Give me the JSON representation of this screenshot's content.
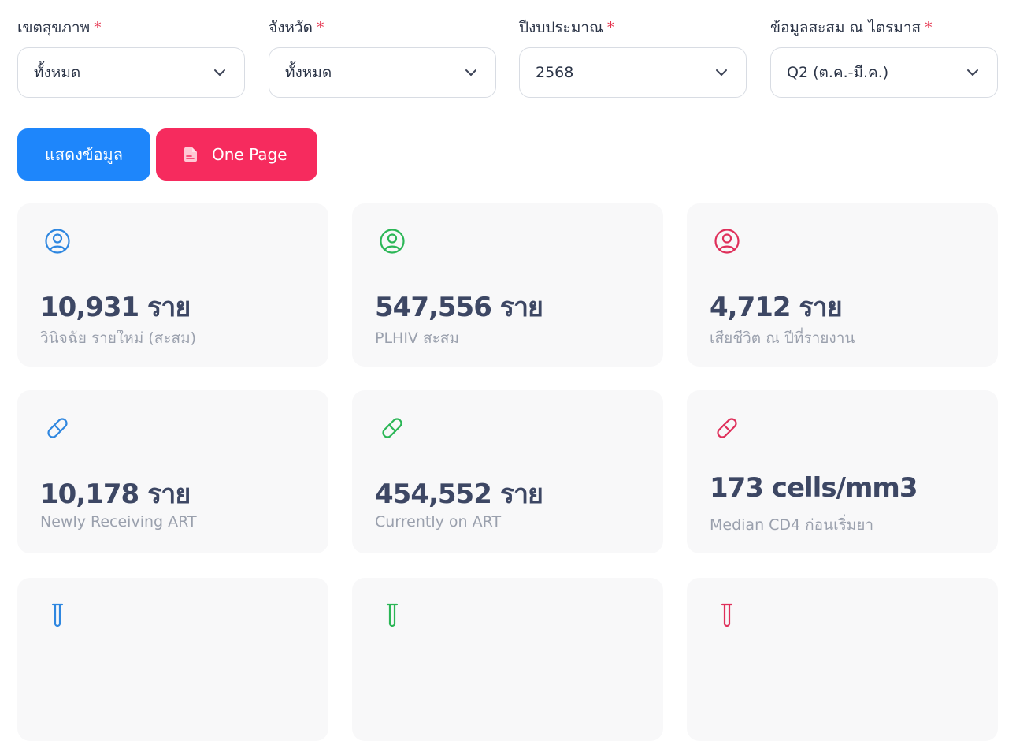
{
  "filters": [
    {
      "label": "เขตสุขภาพ",
      "value": "ทั้งหมด"
    },
    {
      "label": "จังหวัด",
      "value": "ทั้งหมด"
    },
    {
      "label": "ปีงบประมาณ",
      "value": "2568"
    },
    {
      "label": "ข้อมูลสะสม ณ ไตรมาส",
      "value": "Q2 (ต.ค.-มี.ค.)"
    }
  ],
  "required_mark": "*",
  "buttons": {
    "show_label": "แสดงข้อมูล",
    "one_page_label": "One Page"
  },
  "cards": [
    {
      "icon": "user-circle-icon",
      "color": "#2f87e0",
      "value": "10,931 ราย",
      "label": "วินิจฉัย รายใหม่ (สะสม)"
    },
    {
      "icon": "user-circle-icon",
      "color": "#2bb656",
      "value": "547,556 ราย",
      "label": "PLHIV สะสม"
    },
    {
      "icon": "user-circle-icon",
      "color": "#df2f5a",
      "value": "4,712 ราย",
      "label": "เสียชีวิต ณ ปีที่รายงาน"
    },
    {
      "icon": "pill-icon",
      "color": "#2f87e0",
      "value": "10,178 ราย",
      "label": "Newly Receiving ART"
    },
    {
      "icon": "pill-icon",
      "color": "#2bb656",
      "value": "454,552 ราย",
      "label": "Currently on ART"
    },
    {
      "icon": "pill-icon",
      "color": "#df2f5a",
      "value": "173 cells/mm3",
      "label": "Median CD4 ก่อนเริ่มยา"
    }
  ],
  "colors": {
    "blue": "#1e86fb",
    "pink": "#f62b5e",
    "card_bg": "#f8f8f9"
  }
}
